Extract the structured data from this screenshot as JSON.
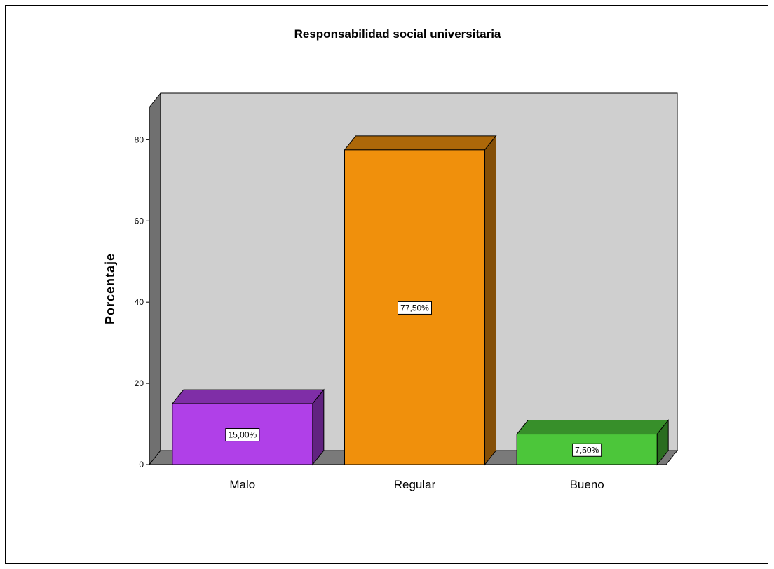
{
  "chart_data": {
    "type": "bar",
    "title": "Responsabilidad social universitaria",
    "xlabel": "",
    "ylabel": "Porcentaje",
    "categories": [
      "Malo",
      "Regular",
      "Bueno"
    ],
    "values": [
      15.0,
      77.5,
      7.5
    ],
    "data_labels": [
      "15,00%",
      "77,50%",
      "7,50%"
    ],
    "colors": [
      "#b040e8",
      "#f0900c",
      "#4cc63a"
    ],
    "ylim": [
      0,
      88
    ],
    "yticks": [
      0,
      20,
      40,
      60,
      80
    ],
    "grid": false,
    "style": "3d",
    "wall_color": "#cfcfcf",
    "floor_color": "#7a7a7a"
  }
}
